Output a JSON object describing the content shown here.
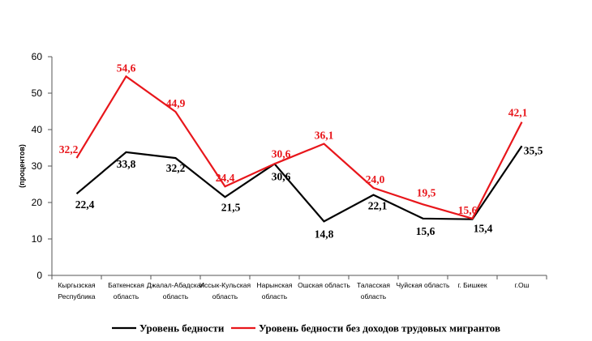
{
  "chart_data": {
    "type": "line",
    "title": "",
    "xlabel": "",
    "ylabel": "(процентов)",
    "ylim": [
      0,
      60
    ],
    "yticks": [
      "0",
      "10",
      "20",
      "30",
      "40",
      "50",
      "60"
    ],
    "grid": false,
    "legend_position": "bottom",
    "categories": [
      [
        "Кыргызская",
        "Республика"
      ],
      [
        "Баткенская",
        "область"
      ],
      [
        "Джалал-Абадская",
        "область"
      ],
      [
        "Иссык-Кульская",
        "область"
      ],
      [
        "Нарынская",
        "область"
      ],
      [
        "Ошская область"
      ],
      [
        "Таласская",
        "область"
      ],
      [
        "Чуйская область"
      ],
      [
        "г. Бишкек"
      ],
      [
        "г.Ош"
      ]
    ],
    "series": [
      {
        "name": "Уровень бедности",
        "color": "#000000",
        "values": [
          22.4,
          33.8,
          32.2,
          21.5,
          30.6,
          14.8,
          22.1,
          15.6,
          15.4,
          35.5
        ],
        "labels": [
          "22,4",
          "33,8",
          "32,2",
          "21,5",
          "30,6",
          "14,8",
          "22,1",
          "15,6",
          "15,4",
          "35,5"
        ]
      },
      {
        "name": "Уровень бедности без доходов трудовых мигрантов",
        "color": "#e8161b",
        "values": [
          32.2,
          54.6,
          44.9,
          24.4,
          30.6,
          36.1,
          24.0,
          19.5,
          15.6,
          42.1
        ],
        "labels": [
          "32,2",
          "54,6",
          "44,9",
          "24,4",
          "30,6",
          "36,1",
          "24,0",
          "19,5",
          "15,6",
          "42,1"
        ]
      }
    ]
  }
}
